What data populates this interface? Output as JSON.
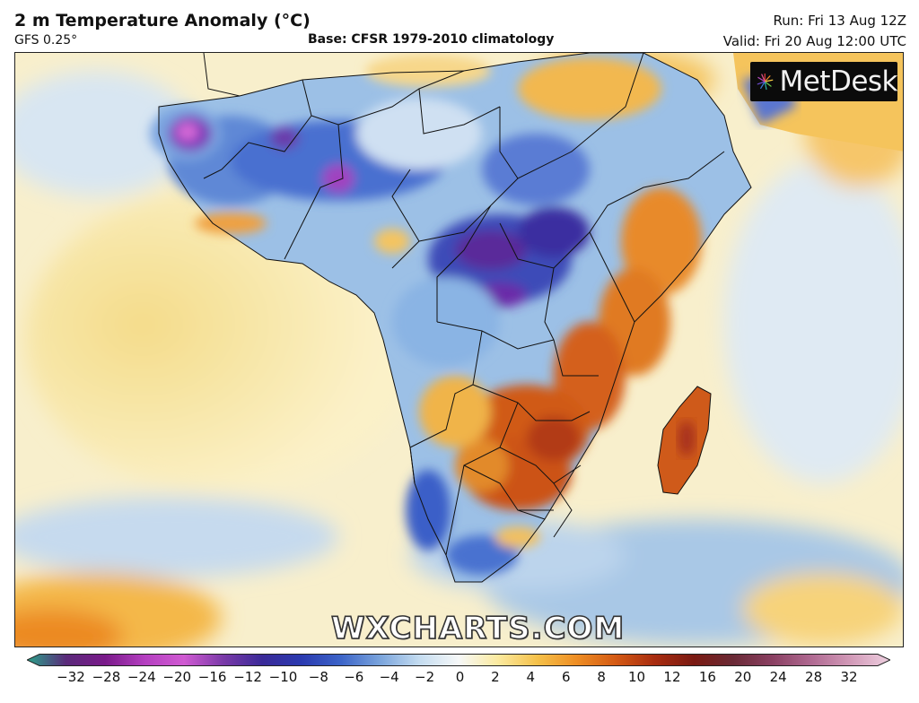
{
  "header": {
    "title": "2 m Temperature Anomaly (°C)",
    "model": "GFS 0.25°",
    "base": "Base: CFSR 1979-2010 climatology",
    "run": "Run: Fri 13 Aug 12Z",
    "valid": "Valid: Fri 20 Aug 12:00 UTC"
  },
  "logo": {
    "text": "MetDesk",
    "icon": "metdesk-starburst-icon"
  },
  "watermark": "WXCHARTS.COM",
  "map": {
    "region": "Africa",
    "variable": "2 m temperature anomaly"
  },
  "colorbar": {
    "ticks": [
      "−32",
      "−28",
      "−24",
      "−20",
      "−16",
      "−12",
      "−10",
      "−8",
      "−6",
      "−4",
      "−2",
      "0",
      "2",
      "4",
      "6",
      "8",
      "10",
      "12",
      "16",
      "20",
      "24",
      "28",
      "32"
    ],
    "colors": [
      "#2aa38a",
      "#5a2a7a",
      "#7a1a8a",
      "#b43fc0",
      "#d05ad2",
      "#7a3aa8",
      "#3a2a98",
      "#2a3ab0",
      "#3c64c8",
      "#7aa4dc",
      "#c4dcf0",
      "#f6f8f8",
      "#fbeaa0",
      "#f5c14a",
      "#ee8e24",
      "#d45a14",
      "#a82c10",
      "#7a1a12",
      "#6a2a36",
      "#8a4062",
      "#b06a92",
      "#d29ab8",
      "#eed0e0"
    ]
  }
}
